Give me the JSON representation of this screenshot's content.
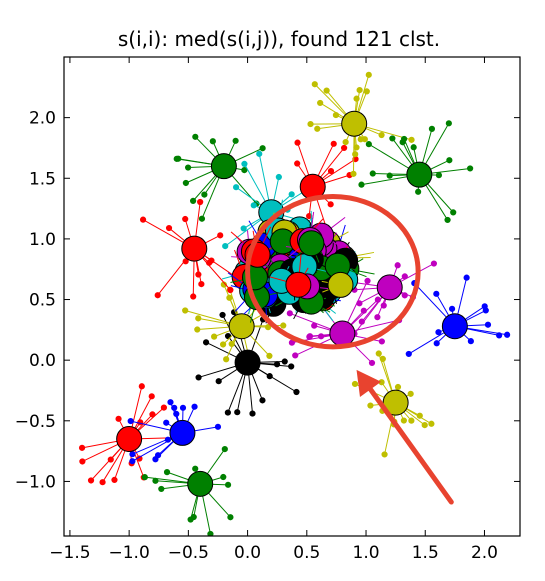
{
  "chart_data": {
    "type": "scatter",
    "title": "s(i,i): med(s(i,j)), found 121 clst.",
    "xlabel": "",
    "ylabel": "",
    "xlim": [
      -1.55,
      2.3
    ],
    "ylim": [
      -1.45,
      2.5
    ],
    "xticks": [
      "−1.5",
      "−1.0",
      "−0.5",
      "0.0",
      "0.5",
      "1.0",
      "1.5",
      "2.0"
    ],
    "xtick_values": [
      -1.5,
      -1.0,
      -0.5,
      0.0,
      0.5,
      1.0,
      1.5,
      2.0
    ],
    "yticks": [
      "−1.0",
      "−0.5",
      "0.0",
      "0.5",
      "1.0",
      "1.5",
      "2.0"
    ],
    "ytick_values": [
      -1.0,
      -0.5,
      0.0,
      0.5,
      1.0,
      1.5,
      2.0
    ],
    "grid": false,
    "legend": "none",
    "outer_clusters": [
      {
        "x": -1.0,
        "y": -0.65,
        "color": "#ff0000"
      },
      {
        "x": -0.55,
        "y": -0.6,
        "color": "#0000ff"
      },
      {
        "x": -0.4,
        "y": -1.02,
        "color": "#008000"
      },
      {
        "x": 0.0,
        "y": -0.02,
        "color": "#000000"
      },
      {
        "x": -0.05,
        "y": 0.28,
        "color": "#bfbf00"
      },
      {
        "x": -0.45,
        "y": 0.92,
        "color": "#ff0000"
      },
      {
        "x": -0.2,
        "y": 1.6,
        "color": "#008000"
      },
      {
        "x": 0.2,
        "y": 1.22,
        "color": "#00bfbf"
      },
      {
        "x": 0.55,
        "y": 1.43,
        "color": "#ff0000"
      },
      {
        "x": 0.9,
        "y": 1.95,
        "color": "#bfbf00"
      },
      {
        "x": 1.45,
        "y": 1.53,
        "color": "#008000"
      },
      {
        "x": 1.75,
        "y": 0.28,
        "color": "#0000ff"
      },
      {
        "x": 1.25,
        "y": -0.35,
        "color": "#bfbf00"
      },
      {
        "x": 1.2,
        "y": 0.6,
        "color": "#bf00bf"
      },
      {
        "x": 0.8,
        "y": 0.22,
        "color": "#bf00bf"
      }
    ],
    "dense_core": {
      "center": [
        0.4,
        0.75
      ],
      "spread": [
        0.45,
        0.35
      ],
      "count": 95
    },
    "annotation_circle": {
      "center": [
        0.72,
        0.73
      ],
      "radius_x": 0.72,
      "radius_y": 0.62,
      "color": "#e8432f"
    },
    "annotation_arrow": {
      "from": [
        1.72,
        -1.17
      ],
      "to": [
        0.92,
        -0.08
      ],
      "color": "#e8432f"
    }
  },
  "colors": {
    "red": "#ff0000",
    "blue": "#0000ff",
    "green": "#008000",
    "black": "#000000",
    "yellow": "#bfbf00",
    "cyan": "#00bfbf",
    "magenta": "#bf00bf",
    "annotation": "#e8432f"
  }
}
